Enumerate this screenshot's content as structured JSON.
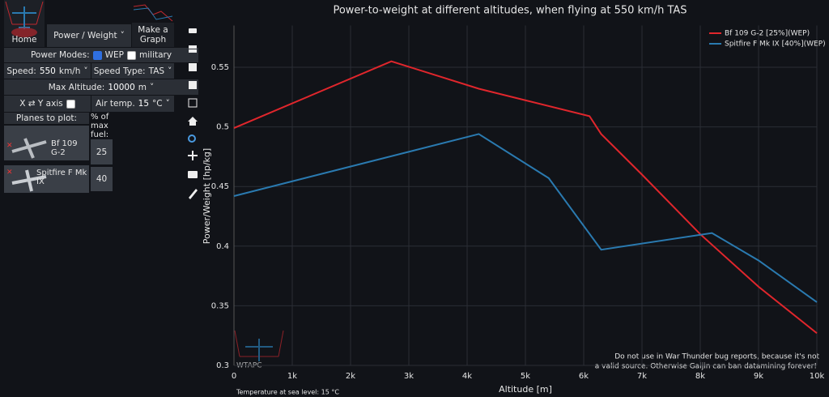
{
  "ui": {
    "home": "Home",
    "graph_type": "Power / Weight",
    "make_graph": [
      "Make a",
      "Graph"
    ],
    "power_modes": "Power Modes:",
    "wep": "WEP",
    "military": "military",
    "speed_label": "Speed:",
    "speed_value": "550",
    "speed_unit": "km/h",
    "speed_type_label": "Speed Type:",
    "speed_type": "TAS",
    "max_altitude_label": "Max Altitude:",
    "max_altitude": "10000",
    "altitude_unit": "m",
    "swap_axes": "X ⇄ Y axis",
    "air_temp_label": "Air temp.",
    "air_temp": "15",
    "temp_unit": "°C",
    "planes_to_plot": "Planes to plot:",
    "fuel_header": [
      "% of",
      "max",
      "fuel:"
    ],
    "planes": [
      {
        "name": "Bf 109 G-2",
        "fuel": "25"
      },
      {
        "name": "Spitfire F Mk IX",
        "fuel": "40"
      }
    ],
    "sea_level_temp": "Temperature at sea level: 15 °C",
    "logo": "WTAPC",
    "watermark": [
      "Do not use in War Thunder bug reports, because it's not",
      "a valid source. Otherwise Gaijin can ban datamining forever!"
    ]
  },
  "chart_data": {
    "type": "line",
    "title": "Power-to-weight at different altitudes, when flying at 550 km/h TAS",
    "x_label": "Altitude [m]",
    "y_label": "Power/Weight [hp/kg]",
    "xlim": [
      0,
      10000
    ],
    "ylim": [
      0.3,
      0.585
    ],
    "xticks": [
      0,
      {
        "value": 1000,
        "label": "1k"
      },
      {
        "value": 2000,
        "label": "2k"
      },
      {
        "value": 3000,
        "label": "3k"
      },
      {
        "value": 4000,
        "label": "4k"
      },
      {
        "value": 5000,
        "label": "5k"
      },
      {
        "value": 6000,
        "label": "6k"
      },
      {
        "value": 7000,
        "label": "7k"
      },
      {
        "value": 8000,
        "label": "8k"
      },
      {
        "value": 9000,
        "label": "9k"
      },
      {
        "value": 10000,
        "label": "10k"
      }
    ],
    "yticks": [
      0.3,
      0.35,
      0.4,
      0.45,
      0.5,
      0.55
    ],
    "grid": true,
    "legend": "top-right",
    "series": [
      {
        "name": "Bf 109 G-2 [25%](WEP)",
        "color": "#e0262c",
        "x": [
          0,
          2700,
          4200,
          6100,
          6300,
          7000,
          8000,
          9000,
          10000
        ],
        "values": [
          0.499,
          0.555,
          0.532,
          0.509,
          0.494,
          0.46,
          0.41,
          0.366,
          0.327
        ]
      },
      {
        "name": "Spitfire F Mk IX [40%](WEP)",
        "color": "#2a7ab0",
        "x": [
          0,
          4200,
          5400,
          6300,
          8200,
          9000,
          10000
        ],
        "values": [
          0.442,
          0.494,
          0.457,
          0.397,
          0.411,
          0.388,
          0.353
        ]
      }
    ]
  }
}
